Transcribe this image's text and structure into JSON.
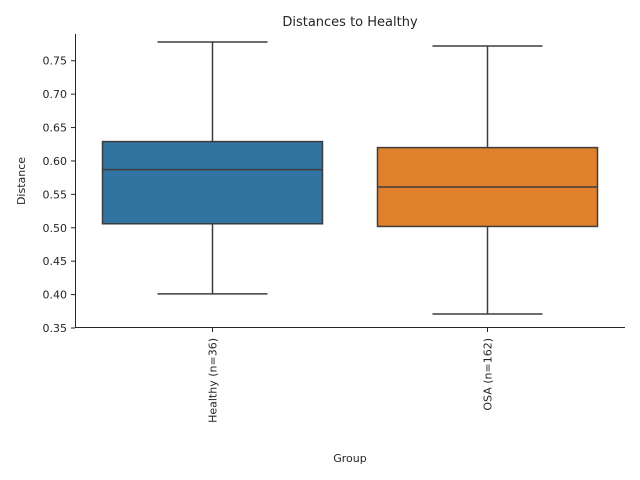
{
  "chart_data": {
    "type": "box",
    "title": "Distances to Healthy",
    "xlabel": "Group",
    "ylabel": "Distance",
    "ylim": [
      0.35,
      0.79
    ],
    "yticks": [
      0.35,
      0.4,
      0.45,
      0.5,
      0.55,
      0.6,
      0.65,
      0.7,
      0.75
    ],
    "ytick_labels": [
      "0.35",
      "0.40",
      "0.45",
      "0.50",
      "0.55",
      "0.60",
      "0.65",
      "0.70",
      "0.75"
    ],
    "grid": false,
    "categories": [
      "Healthy (n=36)",
      "OSA (n=162)"
    ],
    "boxes": [
      {
        "category": "Healthy (n=36)",
        "min": 0.401,
        "q1": 0.506,
        "median": 0.587,
        "q3": 0.629,
        "max": 0.778,
        "color": "#3274a1"
      },
      {
        "category": "OSA (n=162)",
        "min": 0.371,
        "q1": 0.502,
        "median": 0.561,
        "q3": 0.62,
        "max": 0.772,
        "color": "#e1812c"
      }
    ]
  }
}
